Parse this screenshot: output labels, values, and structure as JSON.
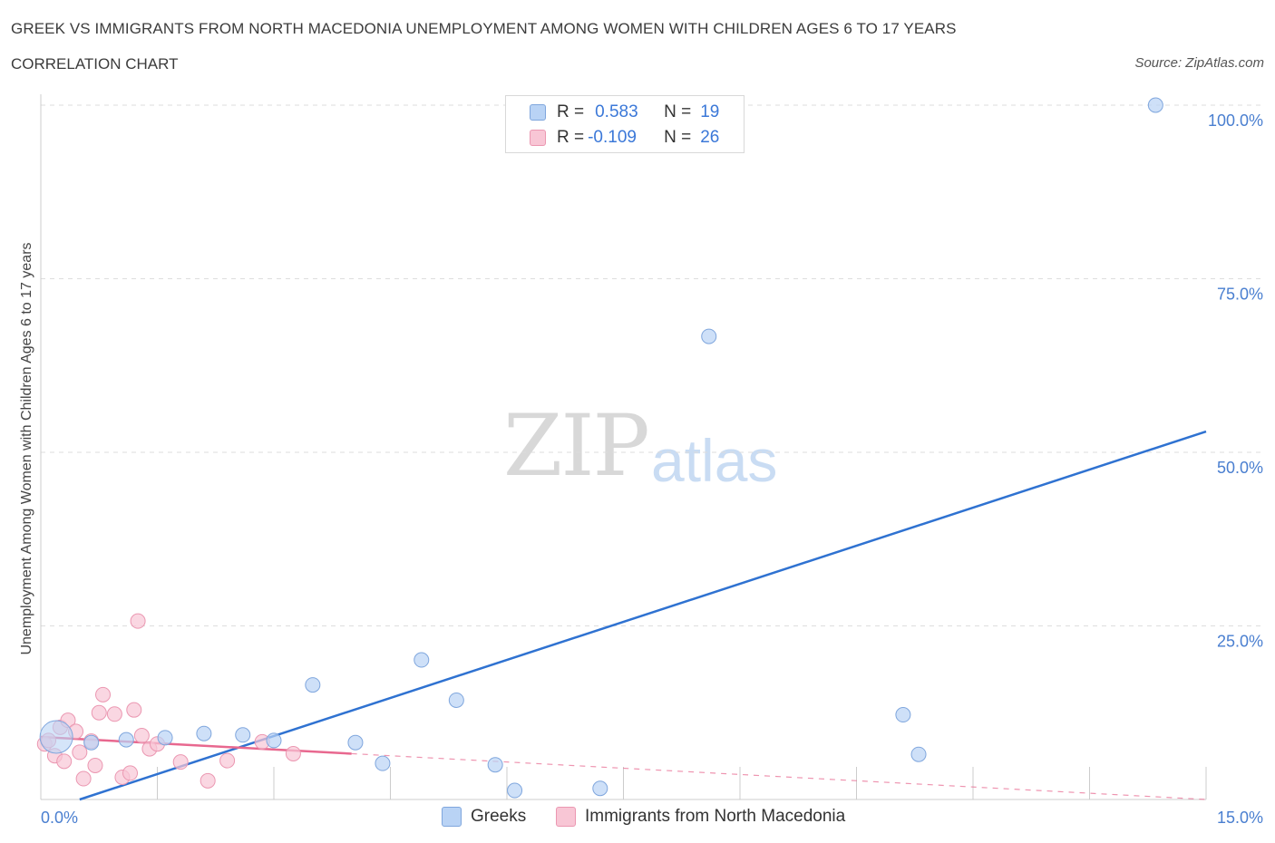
{
  "header": {
    "title": "GREEK VS IMMIGRANTS FROM NORTH MACEDONIA UNEMPLOYMENT AMONG WOMEN WITH CHILDREN AGES 6 TO 17 YEARS",
    "subtitle": "CORRELATION CHART",
    "source": "Source: ZipAtlas.com"
  },
  "watermark": {
    "part1": "ZIP",
    "part2": "atlas"
  },
  "legend": {
    "rows": [
      {
        "r_label": "R =",
        "r_value": "0.583",
        "n_label": "N =",
        "n_value": "19"
      },
      {
        "r_label": "R =",
        "r_value": "-0.109",
        "n_label": "N =",
        "n_value": "26"
      }
    ]
  },
  "colors": {
    "greeks_fill": "#b9d3f5",
    "greeks_stroke": "#7fa6dd",
    "greeks_line": "#2f72d1",
    "mk_fill": "#f8c6d5",
    "mk_stroke": "#eb97b1",
    "mk_line": "#e8688f",
    "grid": "#dddddd",
    "axis_text": "#4a7fd0"
  },
  "chart_data": {
    "type": "scatter",
    "title": "GREEK VS IMMIGRANTS FROM NORTH MACEDONIA UNEMPLOYMENT AMONG WOMEN WITH CHILDREN AGES 6 TO 17 YEARS",
    "xlabel": "",
    "ylabel": "Unemployment Among Women with Children Ages 6 to 17 years",
    "xlim": [
      0,
      15
    ],
    "ylim": [
      0,
      100
    ],
    "x_tick_labels": [
      "0.0%",
      "15.0%"
    ],
    "y_tick_labels": [
      "100.0%",
      "75.0%",
      "50.0%",
      "25.0%"
    ],
    "y_gridlines": [
      100,
      75,
      50,
      25
    ],
    "series": [
      {
        "name": "Greeks",
        "r": 0.583,
        "n": 19,
        "points": [
          {
            "x": 0.2,
            "y": 9.0,
            "big": true
          },
          {
            "x": 0.65,
            "y": 8.2
          },
          {
            "x": 1.1,
            "y": 8.6
          },
          {
            "x": 1.6,
            "y": 8.9
          },
          {
            "x": 2.1,
            "y": 9.5
          },
          {
            "x": 2.6,
            "y": 9.3
          },
          {
            "x": 3.0,
            "y": 8.5
          },
          {
            "x": 3.5,
            "y": 16.5
          },
          {
            "x": 4.05,
            "y": 8.2
          },
          {
            "x": 4.4,
            "y": 5.2
          },
          {
            "x": 4.9,
            "y": 20.1
          },
          {
            "x": 5.35,
            "y": 14.3
          },
          {
            "x": 5.85,
            "y": 5.0
          },
          {
            "x": 6.1,
            "y": 1.3
          },
          {
            "x": 7.2,
            "y": 1.6
          },
          {
            "x": 8.6,
            "y": 66.7
          },
          {
            "x": 11.1,
            "y": 12.2
          },
          {
            "x": 11.3,
            "y": 6.5
          },
          {
            "x": 14.35,
            "y": 100.0
          }
        ],
        "trend": {
          "x0": 0.5,
          "y0": 0.0,
          "x1": 15.0,
          "y1": 53.0,
          "style": "solid"
        }
      },
      {
        "name": "Immigrants from North Macedonia",
        "r": -0.109,
        "n": 26,
        "points": [
          {
            "x": 0.05,
            "y": 8.0
          },
          {
            "x": 0.1,
            "y": 8.5
          },
          {
            "x": 0.18,
            "y": 6.3
          },
          {
            "x": 0.25,
            "y": 10.4
          },
          {
            "x": 0.3,
            "y": 5.5
          },
          {
            "x": 0.35,
            "y": 11.4
          },
          {
            "x": 0.45,
            "y": 9.8
          },
          {
            "x": 0.5,
            "y": 6.8
          },
          {
            "x": 0.55,
            "y": 3.0
          },
          {
            "x": 0.65,
            "y": 8.4
          },
          {
            "x": 0.7,
            "y": 4.9
          },
          {
            "x": 0.75,
            "y": 12.5
          },
          {
            "x": 0.8,
            "y": 15.1
          },
          {
            "x": 0.95,
            "y": 12.3
          },
          {
            "x": 1.05,
            "y": 3.2
          },
          {
            "x": 1.15,
            "y": 3.8
          },
          {
            "x": 1.2,
            "y": 12.9
          },
          {
            "x": 1.25,
            "y": 25.7
          },
          {
            "x": 1.3,
            "y": 9.2
          },
          {
            "x": 1.4,
            "y": 7.3
          },
          {
            "x": 1.5,
            "y": 8.0
          },
          {
            "x": 1.8,
            "y": 5.4
          },
          {
            "x": 2.15,
            "y": 2.7
          },
          {
            "x": 2.4,
            "y": 5.6
          },
          {
            "x": 2.85,
            "y": 8.3
          },
          {
            "x": 3.25,
            "y": 6.6
          }
        ],
        "trend": {
          "x0": 0.0,
          "y0": 9.0,
          "x1": 4.0,
          "y1": 6.6,
          "style": "solid",
          "dashed_to": {
            "x": 15.0,
            "y": 0.0
          }
        }
      }
    ]
  },
  "bottom_legend": {
    "items": [
      {
        "label": "Greeks"
      },
      {
        "label": "Immigrants from North Macedonia"
      }
    ]
  }
}
